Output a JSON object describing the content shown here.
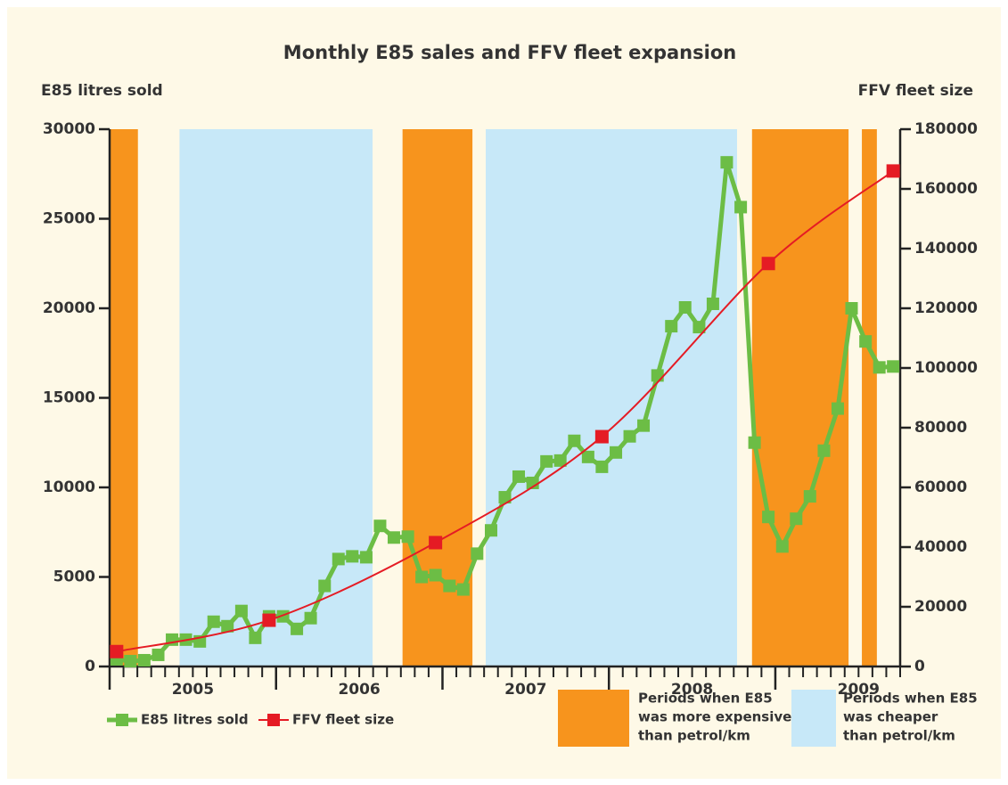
{
  "chart_data": {
    "type": "line",
    "title": "Monthly E85 sales and FFV fleet expansion",
    "y_label": "E85 litres sold",
    "y2_label": "FFV fleet size",
    "xlim": [
      2005,
      2009.75
    ],
    "xticks": [
      2005,
      2006,
      2007,
      2008,
      2009
    ],
    "ylim": [
      0,
      30000
    ],
    "yticks": [
      0,
      5000,
      10000,
      15000,
      20000,
      25000,
      30000
    ],
    "y2lim": [
      0,
      180000
    ],
    "y2ticks": [
      0,
      20000,
      40000,
      60000,
      80000,
      100000,
      120000,
      140000,
      160000,
      180000
    ],
    "bands": [
      {
        "name_lines": [
          "Periods when E85",
          "was more expensive",
          "than petrol/km"
        ],
        "color": "#f7941d",
        "ranges": [
          [
            2005,
            2005.17
          ],
          [
            2006.76,
            2007.18
          ],
          [
            2008.86,
            2009.44
          ],
          [
            2009.52,
            2009.61
          ]
        ]
      },
      {
        "name_lines": [
          "Periods when E85",
          "was cheaper",
          "than petrol/km"
        ],
        "color": "#c7e8f8",
        "ranges": [
          [
            2005.42,
            2006.58
          ],
          [
            2007.26,
            2008.77
          ]
        ]
      }
    ],
    "series": [
      {
        "name": "E85 litres sold",
        "color": "#6cbd45",
        "smooth": false,
        "x": [
          2005.042,
          2005.125,
          2005.208,
          2005.292,
          2005.375,
          2005.458,
          2005.542,
          2005.625,
          2005.708,
          2005.792,
          2005.875,
          2005.958,
          2006.042,
          2006.125,
          2006.208,
          2006.292,
          2006.375,
          2006.458,
          2006.542,
          2006.625,
          2006.708,
          2006.792,
          2006.875,
          2006.958,
          2007.042,
          2007.125,
          2007.208,
          2007.292,
          2007.375,
          2007.458,
          2007.542,
          2007.625,
          2007.708,
          2007.792,
          2007.875,
          2007.958,
          2008.042,
          2008.125,
          2008.208,
          2008.292,
          2008.375,
          2008.458,
          2008.542,
          2008.625,
          2008.708,
          2008.792,
          2008.875,
          2008.958,
          2009.042,
          2009.125,
          2009.208,
          2009.292,
          2009.375,
          2009.458,
          2009.542,
          2009.625,
          2009.708
        ],
        "values": [
          400,
          300,
          350,
          650,
          1500,
          1500,
          1400,
          2500,
          2250,
          3100,
          1600,
          2800,
          2800,
          2100,
          2700,
          4500,
          6000,
          6150,
          6100,
          7850,
          7200,
          7250,
          5000,
          5100,
          4500,
          4300,
          6300,
          7600,
          9450,
          10600,
          10250,
          11450,
          11500,
          12600,
          11700,
          11150,
          11950,
          12850,
          13450,
          16250,
          19000,
          20050,
          18950,
          20250,
          28150,
          25650,
          12500,
          8350,
          6700,
          8250,
          9500,
          12050,
          14400,
          20000,
          18150,
          16700,
          16750
        ]
      },
      {
        "name": "FFV fleet size",
        "color": "#e51b24",
        "axis": "y2",
        "smooth": true,
        "x": [
          2005.042,
          2005.958,
          2006.958,
          2007.958,
          2008.958,
          2009.708
        ],
        "values": [
          5000,
          15500,
          41500,
          77000,
          135000,
          166000
        ]
      }
    ]
  }
}
